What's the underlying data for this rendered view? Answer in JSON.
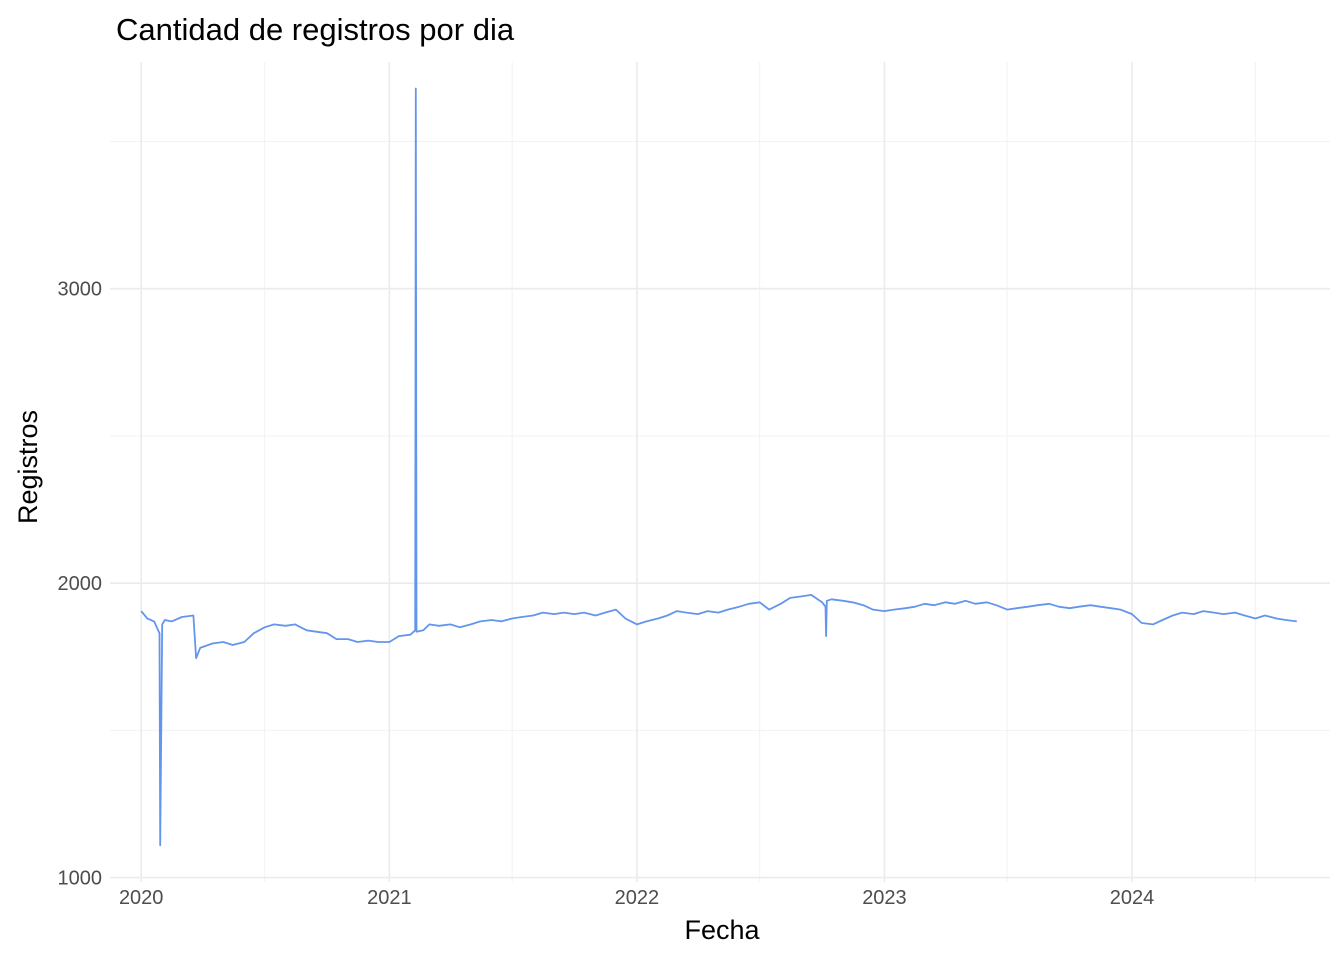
{
  "chart_data": {
    "type": "line",
    "title": "Cantidad de registros por dia",
    "xlabel": "Fecha",
    "ylabel": "Registros",
    "xlim": [
      "2019-11-16",
      "2024-10-19"
    ],
    "ylim": [
      985,
      3770
    ],
    "x_ticks": [
      "2020-01-01",
      "2021-01-01",
      "2022-01-01",
      "2023-01-01",
      "2024-01-01"
    ],
    "x_tick_labels": [
      "2020",
      "2021",
      "2022",
      "2023",
      "2024"
    ],
    "y_ticks": [
      1000,
      2000,
      3000
    ],
    "y_tick_labels": [
      "1000",
      "2000",
      "3000"
    ],
    "x_minor_ticks": [
      "2020-07-01",
      "2021-07-01",
      "2022-07-01",
      "2023-07-01",
      "2024-07-01"
    ],
    "y_minor_ticks": [
      1500,
      2500,
      3500
    ],
    "grid": true,
    "legend": "none",
    "line_color": "#6495ed",
    "series": [
      {
        "x": [
          "2020-01-01",
          "2020-01-10",
          "2020-01-20",
          "2020-01-28",
          "2020-01-29",
          "2020-02-01",
          "2020-02-05",
          "2020-02-15",
          "2020-03-01",
          "2020-03-18",
          "2020-03-22",
          "2020-03-28",
          "2020-04-15",
          "2020-05-01",
          "2020-05-15",
          "2020-06-01",
          "2020-06-15",
          "2020-07-01",
          "2020-07-15",
          "2020-08-01",
          "2020-08-15",
          "2020-09-01",
          "2020-09-15",
          "2020-10-01",
          "2020-10-15",
          "2020-11-01",
          "2020-11-15",
          "2020-12-01",
          "2020-12-15",
          "2021-01-01",
          "2021-01-15",
          "2021-02-01",
          "2021-02-08",
          "2021-02-09",
          "2021-02-10",
          "2021-02-20",
          "2021-03-01",
          "2021-03-15",
          "2021-04-01",
          "2021-04-15",
          "2021-05-01",
          "2021-05-15",
          "2021-06-01",
          "2021-06-15",
          "2021-07-01",
          "2021-07-15",
          "2021-08-01",
          "2021-08-15",
          "2021-09-01",
          "2021-09-15",
          "2021-10-01",
          "2021-10-15",
          "2021-11-01",
          "2021-11-15",
          "2021-12-01",
          "2021-12-15",
          "2022-01-01",
          "2022-01-15",
          "2022-02-01",
          "2022-02-15",
          "2022-03-01",
          "2022-03-15",
          "2022-04-01",
          "2022-04-15",
          "2022-05-01",
          "2022-05-15",
          "2022-06-01",
          "2022-06-15",
          "2022-07-01",
          "2022-07-15",
          "2022-08-01",
          "2022-08-15",
          "2022-09-01",
          "2022-09-15",
          "2022-10-01",
          "2022-10-06",
          "2022-10-07",
          "2022-10-08",
          "2022-10-15",
          "2022-11-01",
          "2022-11-15",
          "2022-12-01",
          "2022-12-15",
          "2023-01-01",
          "2023-01-15",
          "2023-02-01",
          "2023-02-15",
          "2023-03-01",
          "2023-03-15",
          "2023-04-01",
          "2023-04-15",
          "2023-05-01",
          "2023-05-15",
          "2023-06-01",
          "2023-06-15",
          "2023-07-01",
          "2023-07-15",
          "2023-08-01",
          "2023-08-15",
          "2023-09-01",
          "2023-09-15",
          "2023-10-01",
          "2023-10-15",
          "2023-11-01",
          "2023-11-15",
          "2023-12-01",
          "2023-12-15",
          "2024-01-01",
          "2024-01-15",
          "2024-02-01",
          "2024-02-15",
          "2024-03-01",
          "2024-03-15",
          "2024-04-01",
          "2024-04-15",
          "2024-05-01",
          "2024-05-15",
          "2024-06-01",
          "2024-06-15",
          "2024-07-01",
          "2024-07-15",
          "2024-08-01",
          "2024-08-15",
          "2024-08-31"
        ],
        "y": [
          1905,
          1880,
          1870,
          1830,
          1110,
          1860,
          1875,
          1870,
          1885,
          1890,
          1745,
          1780,
          1795,
          1800,
          1790,
          1800,
          1830,
          1850,
          1860,
          1855,
          1860,
          1840,
          1835,
          1830,
          1810,
          1810,
          1800,
          1805,
          1800,
          1800,
          1820,
          1825,
          1840,
          3680,
          1835,
          1840,
          1860,
          1855,
          1860,
          1850,
          1860,
          1870,
          1875,
          1870,
          1880,
          1885,
          1890,
          1900,
          1895,
          1900,
          1895,
          1900,
          1890,
          1900,
          1910,
          1880,
          1860,
          1870,
          1880,
          1890,
          1905,
          1900,
          1895,
          1905,
          1900,
          1910,
          1920,
          1930,
          1935,
          1910,
          1930,
          1950,
          1955,
          1960,
          1935,
          1920,
          1820,
          1940,
          1945,
          1940,
          1935,
          1925,
          1910,
          1905,
          1910,
          1915,
          1920,
          1930,
          1925,
          1935,
          1930,
          1940,
          1930,
          1935,
          1925,
          1910,
          1915,
          1920,
          1925,
          1930,
          1920,
          1915,
          1920,
          1925,
          1920,
          1915,
          1910,
          1895,
          1865,
          1860,
          1875,
          1890,
          1900,
          1895,
          1905,
          1900,
          1895,
          1900,
          1890,
          1880,
          1890,
          1880,
          1875,
          1870
        ]
      }
    ]
  }
}
